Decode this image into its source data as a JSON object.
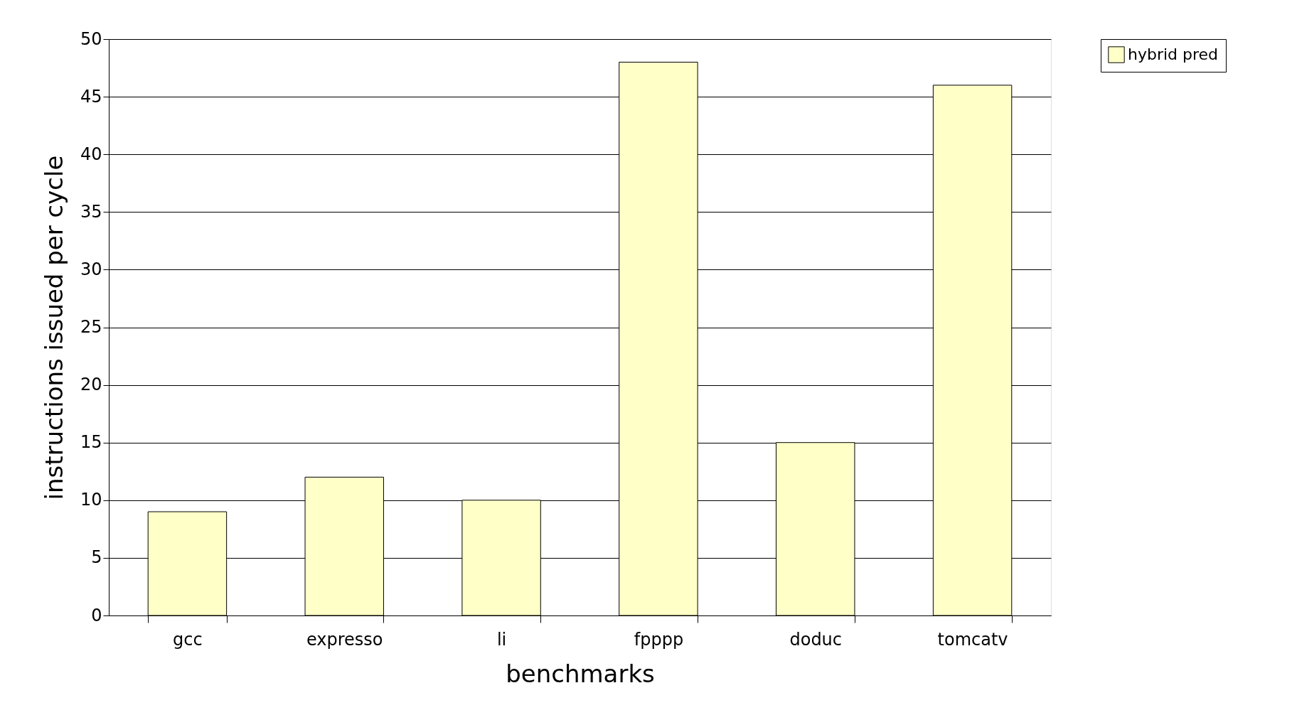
{
  "chart_data": {
    "type": "bar",
    "xlabel": "benchmarks",
    "ylabel": "instructions issued per cycle",
    "categories": [
      "gcc",
      "expresso",
      "li",
      "fpppp",
      "doduc",
      "tomcatv"
    ],
    "series": [
      {
        "name": "hybrid pred",
        "color": "#ffffc8",
        "values": [
          9,
          12,
          10,
          48,
          15,
          46
        ]
      }
    ],
    "ylim": [
      0,
      50
    ],
    "yticks": [
      0,
      5,
      10,
      15,
      20,
      25,
      30,
      35,
      40,
      45,
      50
    ],
    "grid": "y",
    "legend": "right"
  }
}
